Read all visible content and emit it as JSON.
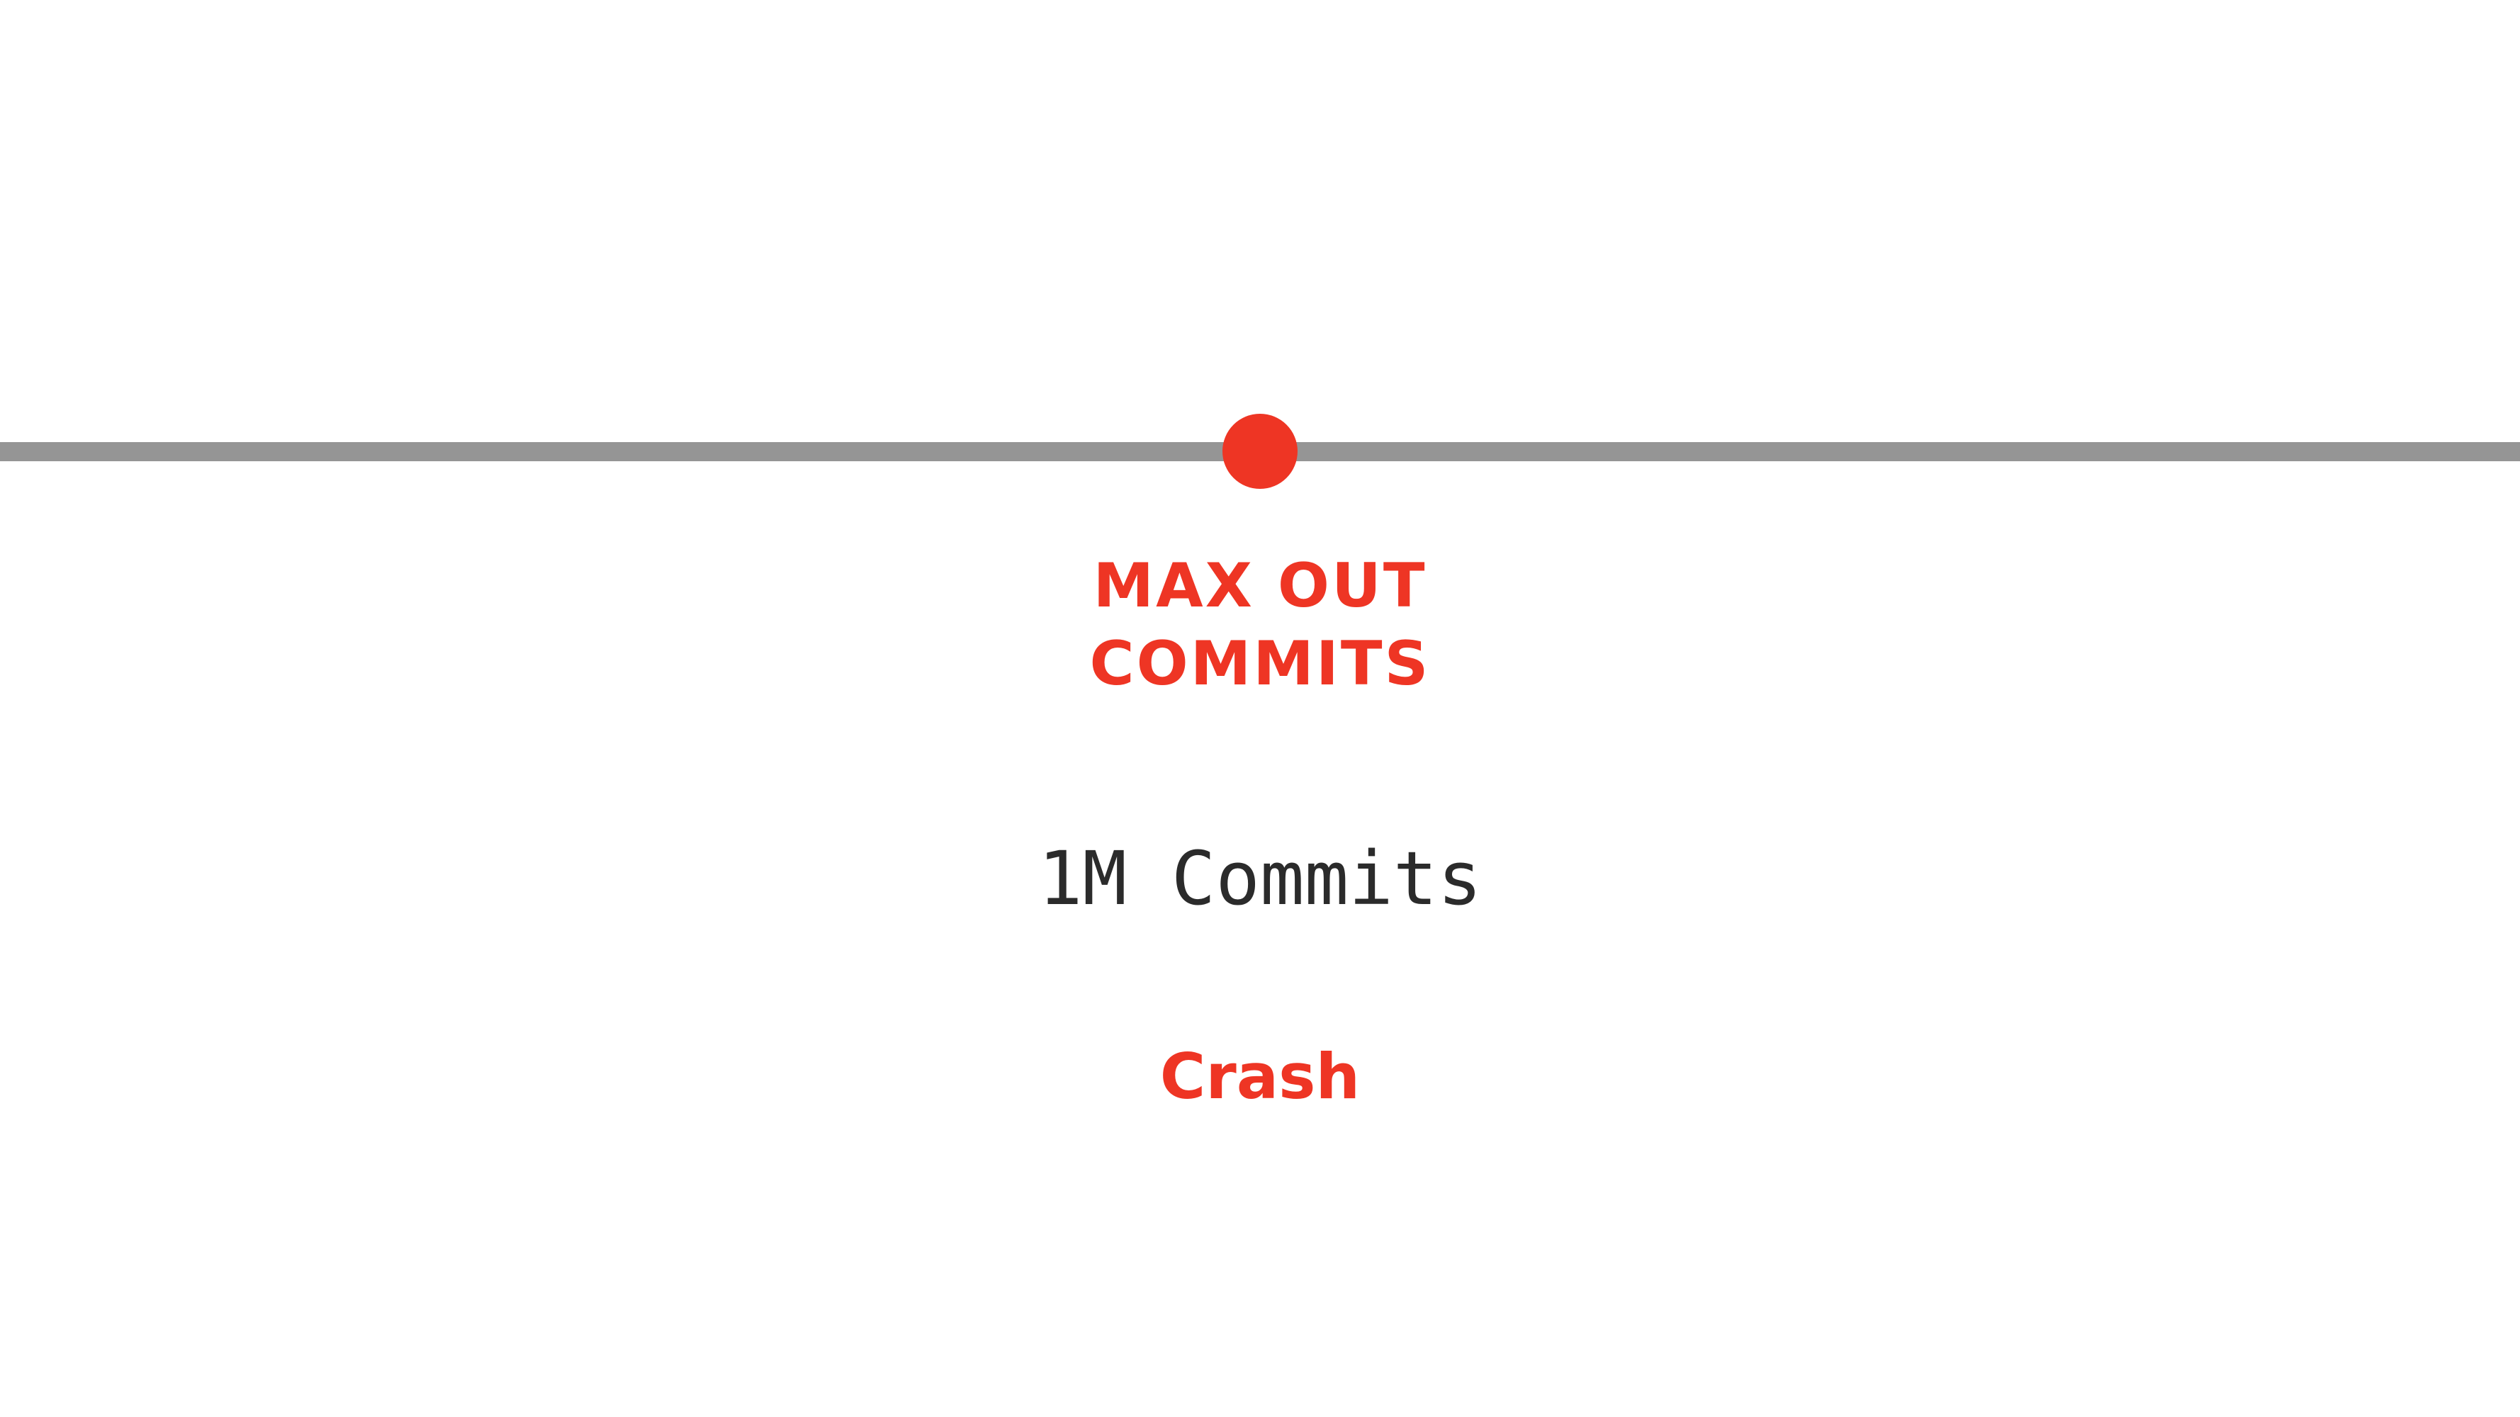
{
  "timeline": {
    "line_color": "#959595",
    "marker_color": "#ee3524"
  },
  "milestone": {
    "title_lines": [
      "MAX OUT",
      "COMMITS"
    ],
    "metric": "1M Commits",
    "result": "Crash"
  },
  "colors": {
    "accent": "#ee3524",
    "text": "#2b2b2b",
    "background": "#ffffff"
  }
}
